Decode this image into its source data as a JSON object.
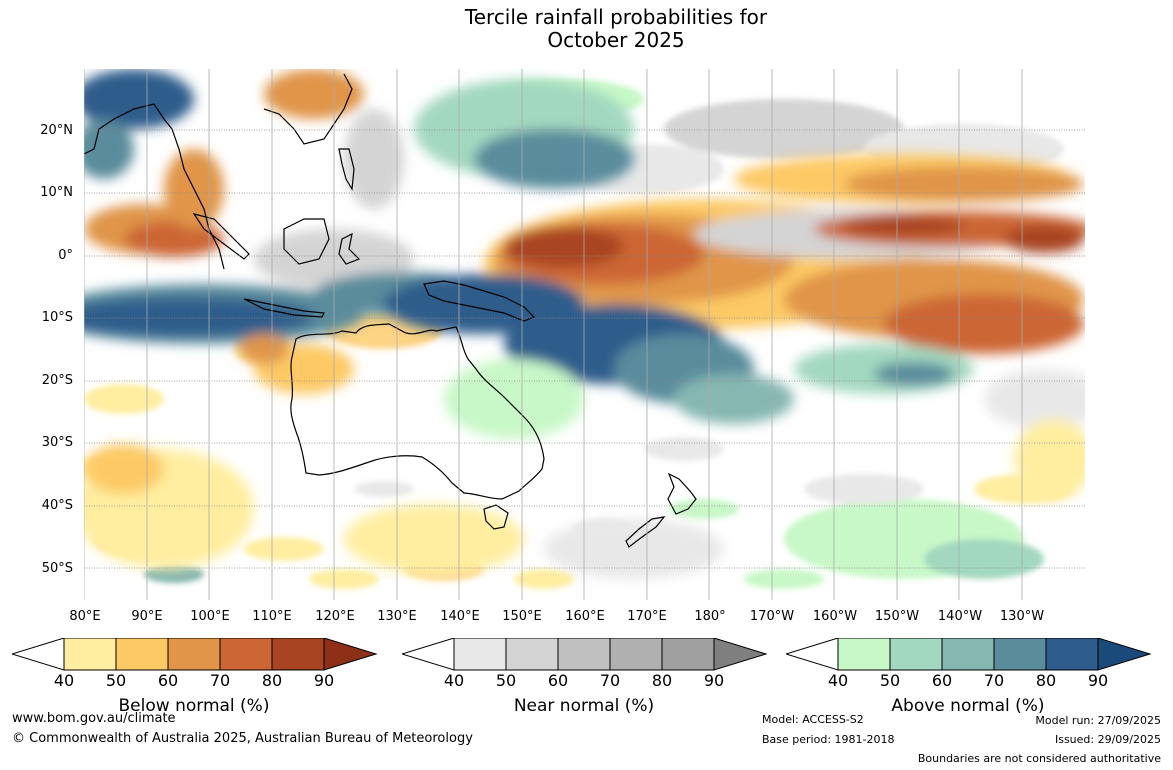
{
  "title": {
    "line1": "Tercile rainfall probabilities for",
    "line2": "October 2025"
  },
  "map": {
    "lat_labels": [
      "20°N",
      "10°N",
      "0°",
      "10°S",
      "20°S",
      "30°S",
      "40°S",
      "50°S"
    ],
    "lon_labels": [
      "80°E",
      "90°E",
      "100°E",
      "110°E",
      "120°E",
      "130°E",
      "140°E",
      "150°E",
      "160°E",
      "170°E",
      "180°",
      "170°W",
      "160°W",
      "150°W",
      "140°W",
      "130°W"
    ]
  },
  "colorbars": [
    {
      "name": "below",
      "title": "Below normal (%)",
      "ticks": [
        "40",
        "50",
        "60",
        "70",
        "80",
        "90"
      ],
      "colors": [
        "#ffeea0",
        "#fdc965",
        "#e09548",
        "#cc6634",
        "#a94422",
        "#8e3018"
      ]
    },
    {
      "name": "near",
      "title": "Near normal (%)",
      "ticks": [
        "40",
        "50",
        "60",
        "70",
        "80",
        "90"
      ],
      "colors": [
        "#e8e8e8",
        "#d4d4d4",
        "#c0c0c0",
        "#b0b0b0",
        "#a0a0a0",
        "#7f7f7f"
      ]
    },
    {
      "name": "above",
      "title": "Above normal (%)",
      "ticks": [
        "40",
        "50",
        "60",
        "70",
        "80",
        "90"
      ],
      "colors": [
        "#c8f8c8",
        "#a3d8c0",
        "#86b7b1",
        "#5a8c9c",
        "#2e5d8c",
        "#1a4a7a"
      ]
    }
  ],
  "footer": {
    "website": "www.bom.gov.au/climate",
    "copyright": "© Commonwealth of Australia 2025, Australian Bureau of Meteorology",
    "model": "Model: ACCESS-S2",
    "base_period": "Base period: 1981-2018",
    "model_run": "Model run: 27/09/2025",
    "issued": "Issued: 29/09/2025",
    "disclaimer": "Boundaries are not considered authoritative"
  }
}
